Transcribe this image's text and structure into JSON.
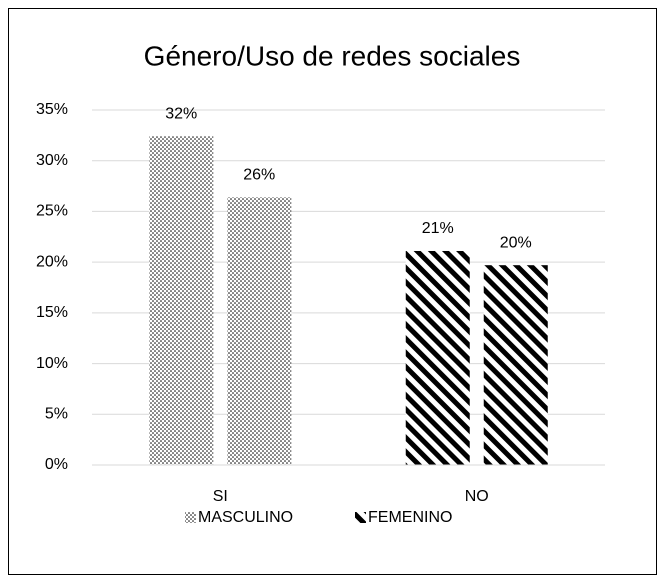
{
  "chart_data": {
    "type": "bar",
    "title": "Género/Uso de redes sociales",
    "categories": [
      "SI",
      "NO"
    ],
    "series": [
      {
        "name": "MASCULINO",
        "color": "#000000",
        "pattern": "dots",
        "values": [
          32.4,
          26.4
        ],
        "value_labels": [
          "32%",
          "26%"
        ]
      },
      {
        "name": "FEMENINO",
        "color": "#000000",
        "pattern": "stripes",
        "values": [
          21.1,
          19.7
        ],
        "value_labels": [
          "21%",
          "20%"
        ]
      }
    ],
    "ylim": [
      0,
      35
    ],
    "yticks": [
      {
        "value": 0,
        "label": "0%"
      },
      {
        "value": 5,
        "label": "5%"
      },
      {
        "value": 10,
        "label": "10%"
      },
      {
        "value": 15,
        "label": "15%"
      },
      {
        "value": 20,
        "label": "20%"
      },
      {
        "value": 25,
        "label": "25%"
      },
      {
        "value": 30,
        "label": "30%"
      },
      {
        "value": 35,
        "label": "35%"
      }
    ],
    "grid": true,
    "legend": "bottom"
  }
}
